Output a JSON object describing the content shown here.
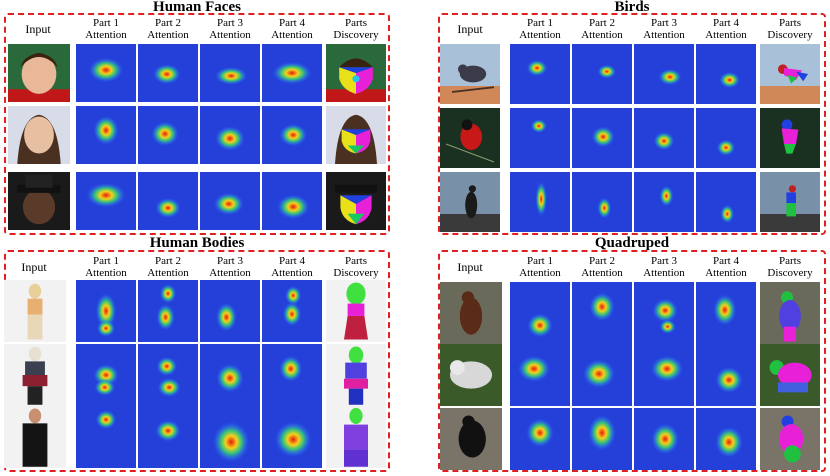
{
  "panels": [
    {
      "id": "faces",
      "title": "Human Faces",
      "input_label": "Input",
      "columns": [
        "Part 1\nAttention",
        "Part 2\nAttention",
        "Part 3\nAttention",
        "Part 4\nAttention",
        "Parts\nDiscovery"
      ],
      "rows": [
        "face-1",
        "face-2",
        "face-3"
      ]
    },
    {
      "id": "birds",
      "title": "Birds",
      "input_label": "Input",
      "columns": [
        "Part 1\nAttention",
        "Part 2\nAttention",
        "Part 3\nAttention",
        "Part 4\nAttention",
        "Parts\nDiscovery"
      ],
      "rows": [
        "bird-1",
        "bird-2",
        "bird-3"
      ]
    },
    {
      "id": "bodies",
      "title": "Human Bodies",
      "input_label": "Input",
      "columns": [
        "Part 1\nAttention",
        "Part 2\nAttention",
        "Part 3\nAttention",
        "Part 4\nAttention",
        "Parts\nDiscovery"
      ],
      "rows": [
        "body-1",
        "body-2",
        "body-3"
      ]
    },
    {
      "id": "quadruped",
      "title": "Quadruped",
      "input_label": "Input",
      "columns": [
        "Part 1\nAttention",
        "Part 2\nAttention",
        "Part 3\nAttention",
        "Part 4\nAttention",
        "Parts\nDiscovery"
      ],
      "rows": [
        "animal-1",
        "animal-2",
        "animal-3"
      ]
    }
  ],
  "colors": {
    "frame": "#e02020",
    "heatmap_cold": "#1f3fd6",
    "heatmap_hot": "#e01010"
  }
}
